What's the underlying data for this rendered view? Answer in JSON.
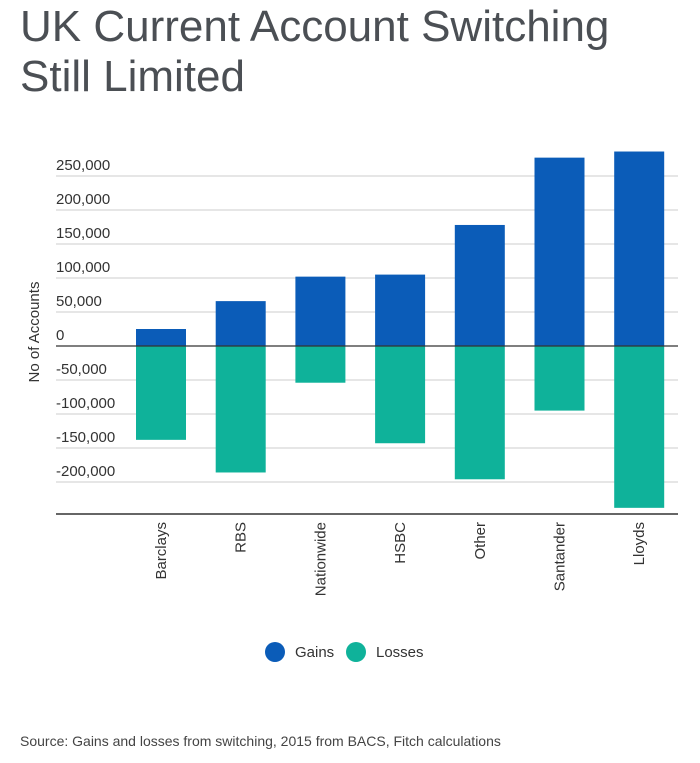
{
  "title_line1": "UK Current Account Switching",
  "title_line2": "Still Limited",
  "source": "Source: Gains and losses from switching, 2015 from BACS, Fitch calculations",
  "colors": {
    "gains": "#0b5cb8",
    "losses": "#0fb29a",
    "grid": "#cccccc",
    "axis": "#333333"
  },
  "chart_data": {
    "type": "bar",
    "categories": [
      "Barclays",
      "RBS",
      "Nationwide",
      "HSBC",
      "Other",
      "Santander",
      "Lloyds"
    ],
    "series": [
      {
        "name": "Gains",
        "values": [
          25000,
          66000,
          102000,
          105000,
          178000,
          277000,
          286000
        ]
      },
      {
        "name": "Losses",
        "values": [
          -138000,
          -186000,
          -54000,
          -143000,
          -196000,
          -95000,
          -238000
        ]
      }
    ],
    "ylabel": "No of Accounts",
    "xlabel": "",
    "ylim": [
      -250000,
      300000
    ],
    "yticks": [
      250000,
      200000,
      150000,
      100000,
      50000,
      0,
      -50000,
      -100000,
      -150000,
      -200000
    ],
    "ytick_labels": [
      "250,000",
      "200,000",
      "150,000",
      "100,000",
      "50,000",
      "0",
      "-50,000",
      "-100,000",
      "-150,000",
      "-200,000"
    ],
    "stacked": true,
    "grid": true,
    "legend": "bottom-center"
  }
}
